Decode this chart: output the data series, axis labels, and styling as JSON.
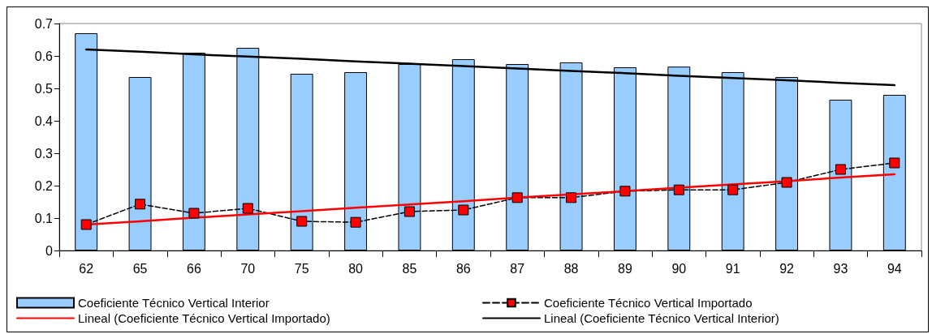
{
  "chart_data": {
    "type": "bar",
    "categories": [
      "62",
      "65",
      "66",
      "70",
      "75",
      "80",
      "85",
      "86",
      "87",
      "88",
      "89",
      "90",
      "91",
      "92",
      "93",
      "94"
    ],
    "series": [
      {
        "name": "Coeficiente Técnico Vertical Interior",
        "color": "#99ccff",
        "values": [
          0.67,
          0.535,
          0.61,
          0.625,
          0.545,
          0.55,
          0.575,
          0.59,
          0.575,
          0.58,
          0.565,
          0.567,
          0.55,
          0.535,
          0.465,
          0.48
        ]
      },
      {
        "name": "Coeficiente Técnico Vertical Importado",
        "type": "line",
        "color": "#000000",
        "marker": "square",
        "line_style": "dashed",
        "values": [
          0.08,
          0.143,
          0.115,
          0.13,
          0.09,
          0.087,
          0.12,
          0.125,
          0.163,
          0.163,
          0.183,
          0.187,
          0.187,
          0.21,
          0.25,
          0.27
        ]
      },
      {
        "name": "Lineal (Coeficiente Técnico Vertical Importado)",
        "type": "line",
        "color": "#ff0000",
        "marker": "none",
        "line_style": "solid",
        "values": [
          0.08,
          0.09,
          0.101,
          0.111,
          0.121,
          0.132,
          0.142,
          0.152,
          0.163,
          0.173,
          0.183,
          0.194,
          0.204,
          0.214,
          0.225,
          0.235
        ]
      },
      {
        "name": "Lineal (Coeficiente Técnico Vertical Interior)",
        "type": "line",
        "color": "#000000",
        "marker": "none",
        "line_style": "solid",
        "values": [
          0.62,
          0.613,
          0.605,
          0.598,
          0.591,
          0.583,
          0.576,
          0.569,
          0.561,
          0.554,
          0.547,
          0.539,
          0.532,
          0.525,
          0.517,
          0.51
        ]
      }
    ],
    "ylim": [
      0,
      0.7
    ],
    "yticks": [
      0,
      0.1,
      0.2,
      0.3,
      0.4,
      0.5,
      0.6,
      0.7
    ],
    "grid": false,
    "legend": "bottom"
  }
}
